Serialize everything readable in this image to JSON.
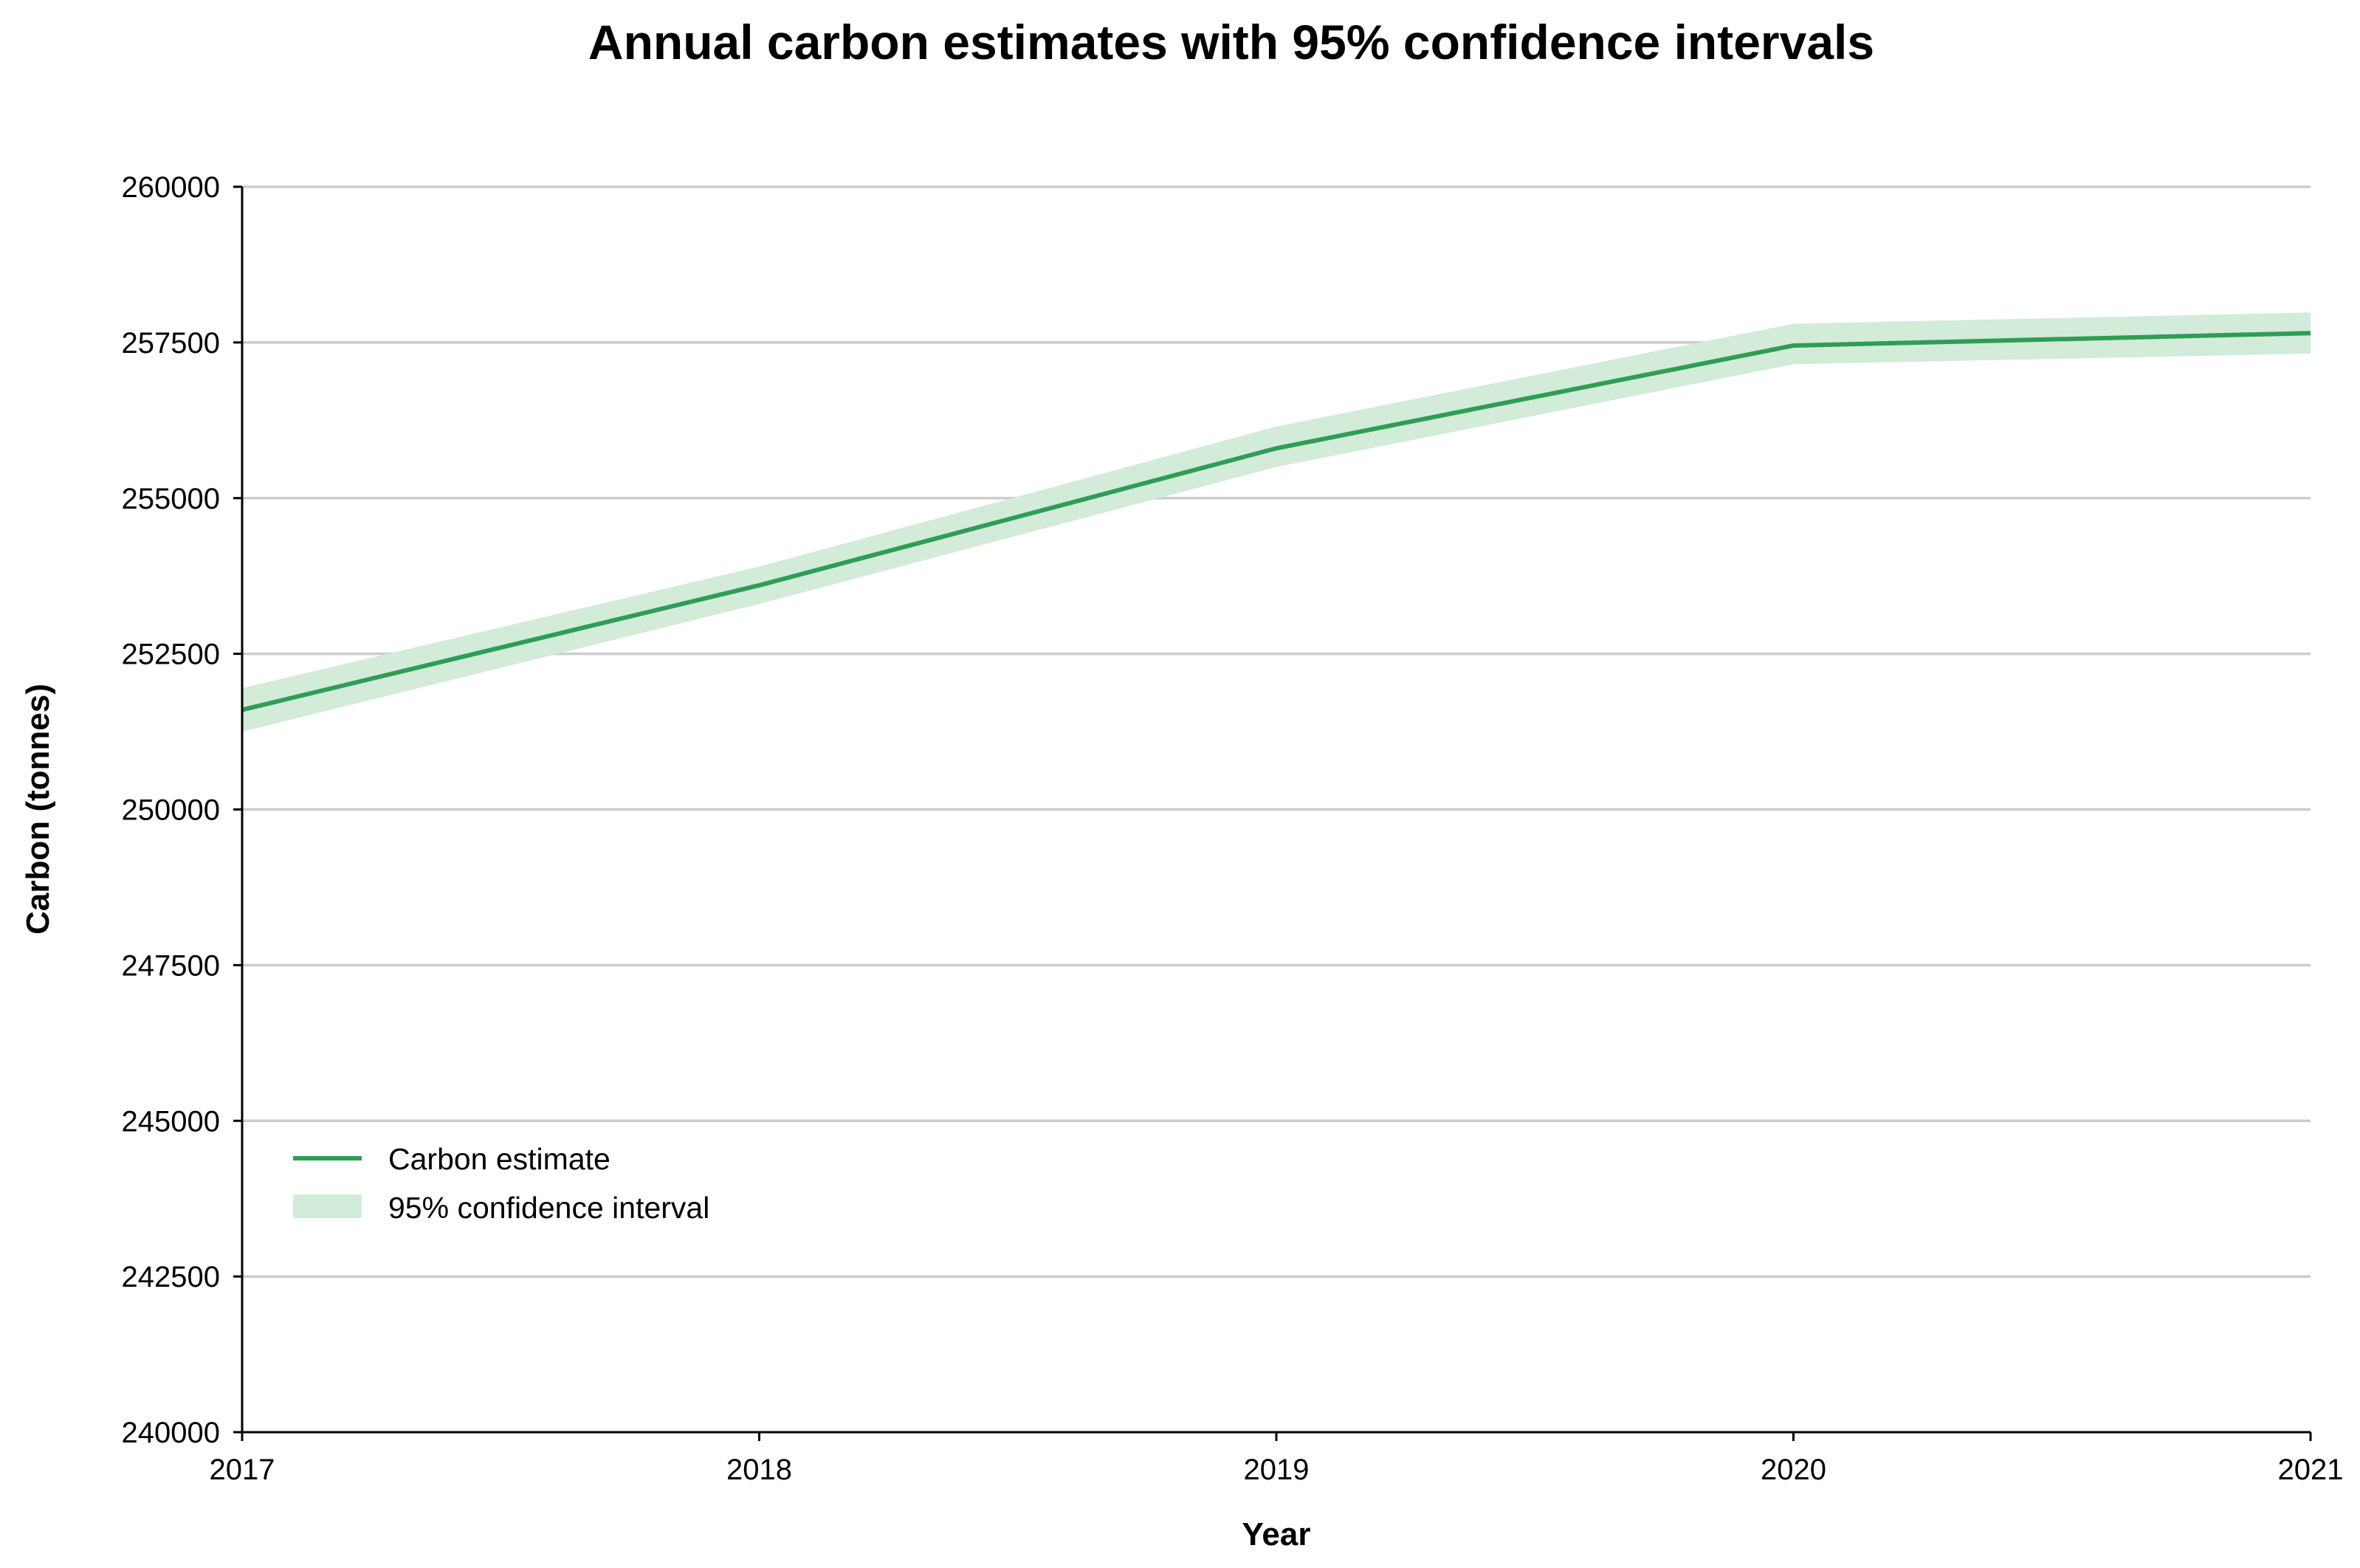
{
  "chart_data": {
    "type": "line",
    "title": "Annual carbon estimates with 95% confidence intervals",
    "xlabel": "Year",
    "ylabel": "Carbon (tonnes)",
    "x": [
      "2017",
      "2018",
      "2019",
      "2020",
      "2021"
    ],
    "xlim": [
      2017,
      2021
    ],
    "ylim": [
      240000,
      260000
    ],
    "yticks": [
      "240000",
      "242500",
      "245000",
      "247500",
      "250000",
      "252500",
      "255000",
      "257500",
      "260000"
    ],
    "series": [
      {
        "name": "Carbon estimate",
        "values": [
          251600,
          253600,
          255800,
          257450,
          257650
        ]
      }
    ],
    "confidence_interval": {
      "name": "95% confidence interval",
      "lower": [
        251250,
        253300,
        255500,
        257150,
        257320
      ],
      "upper": [
        251950,
        253900,
        256150,
        257800,
        257980
      ]
    },
    "grid": "horizontal",
    "legend_position": "lower-left",
    "colors": {
      "line": "#2e9e55",
      "band": "#d3ebd9"
    }
  }
}
